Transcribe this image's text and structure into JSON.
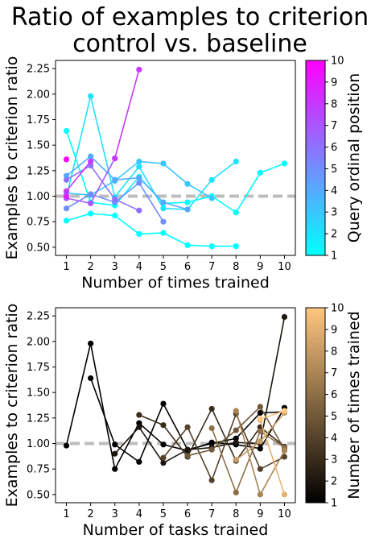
{
  "figure": {
    "title_line1": "Ratio of examples to criterion",
    "title_line2": "control vs. baseline"
  },
  "chart_data": [
    {
      "type": "line",
      "ylabel": "Examples to criterion ratio",
      "xlabel": "Number of times trained",
      "xlim": [
        0.55,
        10.45
      ],
      "ylim": [
        0.42,
        2.33
      ],
      "xticks": [
        "1",
        "2",
        "3",
        "4",
        "5",
        "6",
        "7",
        "8",
        "9",
        "10"
      ],
      "yticks": [
        "0.50",
        "0.75",
        "1.00",
        "1.25",
        "1.50",
        "1.75",
        "2.00",
        "2.25"
      ],
      "reference_line": {
        "y": 1.0,
        "style": "dashed",
        "color": "#bdbdbd"
      },
      "colorbar": {
        "label": "Query ordinal position",
        "min": 1,
        "max": 10,
        "ticks": [
          "1",
          "2",
          "3",
          "4",
          "5",
          "6",
          "7",
          "8",
          "9",
          "10"
        ],
        "colormap": "cool",
        "colors": [
          "#00ffff",
          "#ff00ff"
        ]
      },
      "series": [
        {
          "color_value": 1,
          "x": [
            1,
            2,
            3,
            4,
            5,
            6,
            7,
            8,
            9,
            10
          ],
          "y": [
            1.64,
            0.94,
            0.91,
            1.19,
            0.93,
            0.94,
            1.0,
            0.84,
            1.23,
            1.32
          ]
        },
        {
          "color_value": 1,
          "x": [
            1,
            2,
            3,
            4,
            5,
            6,
            7,
            8
          ],
          "y": [
            0.76,
            0.83,
            0.81,
            0.63,
            0.64,
            0.52,
            0.51,
            0.51
          ]
        },
        {
          "color_value": 2,
          "x": [
            1,
            2,
            3,
            4,
            5,
            6,
            7,
            8
          ],
          "y": [
            0.99,
            1.98,
            0.99,
            1.29,
            0.88,
            0.87,
            1.16,
            1.34
          ]
        },
        {
          "color_value": 3,
          "x": [
            1,
            2,
            3,
            4,
            5,
            6,
            7
          ],
          "y": [
            1.03,
            1.01,
            1.15,
            1.34,
            1.32,
            1.12,
            0.98
          ]
        },
        {
          "color_value": 4,
          "x": [
            1,
            2,
            3,
            4,
            5,
            6
          ],
          "y": [
            1.2,
            1.39,
            1.16,
            1.18,
            0.94,
            0.87
          ]
        },
        {
          "color_value": 5,
          "x": [
            1,
            2,
            3,
            4,
            5
          ],
          "y": [
            0.88,
            1.02,
            0.94,
            1.13,
            0.75
          ]
        },
        {
          "color_value": 6,
          "x": [
            1,
            2,
            3,
            4
          ],
          "y": [
            1.16,
            1.3,
            0.97,
            0.86
          ]
        },
        {
          "color_value": 7,
          "x": [
            1,
            2,
            3
          ],
          "y": [
            0.98,
            0.93,
            1.37
          ]
        },
        {
          "color_value": 8,
          "x": [
            1,
            2
          ],
          "y": [
            1.05,
            1.34
          ]
        },
        {
          "color_value": 8,
          "x": [
            3,
            4
          ],
          "y": [
            1.37,
            2.24
          ]
        },
        {
          "color_value": 9,
          "x": [
            1
          ],
          "y": [
            1.0
          ]
        },
        {
          "color_value": 10,
          "x": [
            1
          ],
          "y": [
            1.36
          ]
        }
      ]
    },
    {
      "type": "line",
      "ylabel": "Examples to criterion ratio",
      "xlabel": "Number of tasks trained",
      "xlim": [
        0.55,
        10.45
      ],
      "ylim": [
        0.42,
        2.33
      ],
      "xticks": [
        "1",
        "2",
        "3",
        "4",
        "5",
        "6",
        "7",
        "8",
        "9",
        "10"
      ],
      "yticks": [
        "0.50",
        "0.75",
        "1.00",
        "1.25",
        "1.50",
        "1.75",
        "2.00",
        "2.25"
      ],
      "reference_line": {
        "y": 1.0,
        "style": "dashed",
        "color": "#bdbdbd"
      },
      "colorbar": {
        "label": "Number of times trained",
        "min": 1,
        "max": 10,
        "ticks": [
          "1",
          "2",
          "3",
          "4",
          "5",
          "6",
          "7",
          "8",
          "9",
          "10"
        ],
        "colormap": "copper",
        "colors": [
          "#000000",
          "#ffc77f"
        ]
      },
      "series": [
        {
          "color_value": 1,
          "x": [
            1,
            2,
            3,
            4,
            5,
            6,
            7,
            8,
            9,
            10
          ],
          "y": [
            0.98,
            1.98,
            0.75,
            1.2,
            0.99,
            0.93,
            1.01,
            0.99,
            0.95,
            1.35
          ]
        },
        {
          "color_value": 1,
          "x": [
            2,
            3,
            4,
            5,
            6,
            7,
            8,
            9,
            10
          ],
          "y": [
            1.64,
            0.99,
            0.82,
            1.39,
            0.94,
            1.0,
            1.05,
            1.3,
            1.31
          ]
        },
        {
          "color_value": 2,
          "x": [
            3,
            4,
            5,
            6,
            7,
            8,
            9,
            10
          ],
          "y": [
            0.9,
            1.16,
            0.81,
            0.94,
            0.96,
            1.01,
            1.0,
            2.24
          ]
        },
        {
          "color_value": 3,
          "x": [
            4,
            5,
            6,
            7,
            8,
            9,
            10
          ],
          "y": [
            1.28,
            1.18,
            0.87,
            1.34,
            0.83,
            1.16,
            0.97
          ]
        },
        {
          "color_value": 4,
          "x": [
            5,
            6,
            7,
            8,
            9,
            10
          ],
          "y": [
            0.86,
            1.16,
            0.64,
            1.29,
            0.75,
            0.87
          ]
        },
        {
          "color_value": 5,
          "x": [
            6,
            7,
            8,
            9,
            10
          ],
          "y": [
            0.88,
            0.94,
            1.13,
            1.36,
            0.94
          ]
        },
        {
          "color_value": 6,
          "x": [
            7,
            8,
            9,
            10
          ],
          "y": [
            1.15,
            0.52,
            1.12,
            0.96
          ]
        },
        {
          "color_value": 7,
          "x": [
            8,
            9,
            10
          ],
          "y": [
            1.32,
            0.5,
            0.93
          ]
        },
        {
          "color_value": 8,
          "x": [
            8,
            9,
            10
          ],
          "y": [
            0.84,
            1.02,
            1.3
          ]
        },
        {
          "color_value": 9,
          "x": [
            9,
            10
          ],
          "y": [
            1.23,
            0.5
          ]
        },
        {
          "color_value": 10,
          "x": [
            9,
            10
          ],
          "y": [
            1.24,
            1.32
          ]
        }
      ]
    }
  ]
}
